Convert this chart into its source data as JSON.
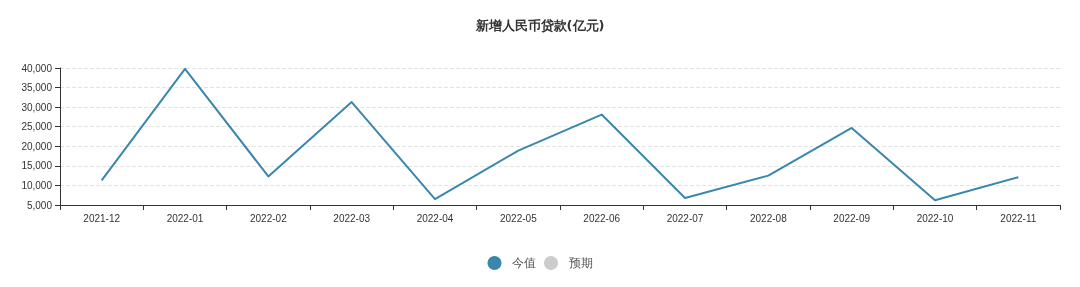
{
  "chart_data": {
    "type": "line",
    "title": "新增人民币贷款(亿元)",
    "categories": [
      "2021-12",
      "2022-01",
      "2022-02",
      "2022-03",
      "2022-04",
      "2022-05",
      "2022-06",
      "2022-07",
      "2022-08",
      "2022-09",
      "2022-10",
      "2022-11"
    ],
    "series": [
      {
        "name": "今值",
        "color": "#3a87ad",
        "values": [
          11300,
          39800,
          12300,
          31300,
          6500,
          18900,
          28100,
          6800,
          12500,
          24700,
          6200,
          12100
        ]
      },
      {
        "name": "预期",
        "color": "#cccccc",
        "values": [
          null,
          null,
          null,
          null,
          null,
          null,
          null,
          null,
          null,
          null,
          null,
          null
        ]
      }
    ],
    "ylim": [
      5000,
      40000
    ],
    "yticks": [
      {
        "value": 5000,
        "label": "5,000"
      },
      {
        "value": 10000,
        "label": "10,000"
      },
      {
        "value": 15000,
        "label": "15,000"
      },
      {
        "value": 20000,
        "label": "20,000"
      },
      {
        "value": 25000,
        "label": "25,000"
      },
      {
        "value": 30000,
        "label": "30,000"
      },
      {
        "value": 35000,
        "label": "35,000"
      },
      {
        "value": 40000,
        "label": "40,000"
      }
    ],
    "grid": "y",
    "legend": "bottom",
    "marker": "none",
    "line_style": "solid"
  }
}
